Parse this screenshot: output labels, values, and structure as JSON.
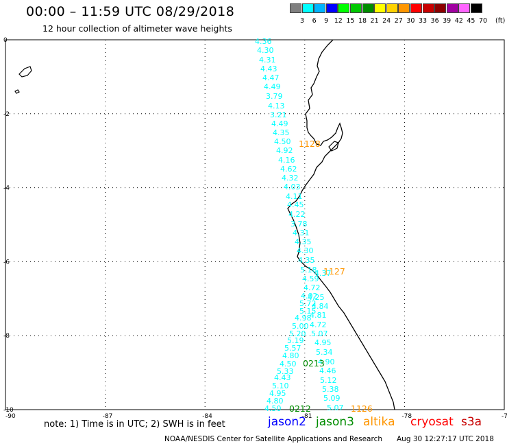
{
  "header": {
    "title": "00:00 – 11:59 UTC 08/29/2018",
    "subtitle": "12 hour collection of altimeter wave heights"
  },
  "legend": {
    "unit": "(ft)",
    "bins": [
      {
        "label": "3",
        "color": "#808080"
      },
      {
        "label": "6",
        "color": "#00ffff"
      },
      {
        "label": "9",
        "color": "#00b4ff"
      },
      {
        "label": "12",
        "color": "#0000ff"
      },
      {
        "label": "15",
        "color": "#00ff00"
      },
      {
        "label": "18",
        "color": "#00c800"
      },
      {
        "label": "21",
        "color": "#008c00"
      },
      {
        "label": "24",
        "color": "#ffff00"
      },
      {
        "label": "27",
        "color": "#ffd200"
      },
      {
        "label": "30",
        "color": "#ff9600"
      },
      {
        "label": "33",
        "color": "#ff0000"
      },
      {
        "label": "36",
        "color": "#c80000"
      },
      {
        "label": "39",
        "color": "#8c0000"
      },
      {
        "label": "42",
        "color": "#a000a0"
      },
      {
        "label": "45",
        "color": "#ff64ff"
      },
      {
        "label": "70",
        "color": "#000000"
      }
    ]
  },
  "map": {
    "lon_min": -90,
    "lon_max": -75,
    "lat_min": -10,
    "lat_max": 0,
    "lon_ticks": [
      "-90",
      "-87",
      "-84",
      "-81",
      "-78",
      "-75"
    ],
    "lat_ticks": [
      "0",
      "-2",
      "-4",
      "-6",
      "-8",
      "-10"
    ],
    "track1": {
      "color": "#00ffff",
      "values": [
        "4.36",
        "4.30",
        "4.31",
        "4.43",
        "4.47",
        "4.49",
        "3.79",
        "4.13",
        "3.21",
        "4.49",
        "4.35",
        "4.50",
        "4.92",
        "4.16",
        "4.62",
        "4.32",
        "4.03",
        "4.11",
        "4.45",
        "4.22",
        "3.78",
        "4.31",
        "4.35",
        "4.30",
        "4.35",
        "5.18",
        "4.37",
        "4.59",
        "4.72",
        "4.02",
        "4.25",
        "4.84",
        "5.72",
        "5.15",
        "4.81",
        "4.98",
        "4.72",
        "5.00",
        "5.20",
        "5.07",
        "5.19",
        "4.95",
        "5.57",
        "5.34",
        "4.80",
        "4.90",
        "4.50",
        "5.33",
        "4.46",
        "4.43",
        "5.12",
        "5.10",
        "5.38",
        "4.95",
        "5.09",
        "4.80",
        "5.07",
        "4.50"
      ]
    },
    "time_labels": [
      {
        "text": "1128",
        "color": "#ff9600"
      },
      {
        "text": "1127",
        "color": "#ff9600"
      },
      {
        "text": "0213",
        "color": "#008c00"
      },
      {
        "text": "0212",
        "color": "#008c00"
      },
      {
        "text": "1126",
        "color": "#ff9600"
      }
    ]
  },
  "footer": {
    "note": "note:  1) Time is in UTC;  2) SWH is in feet",
    "satellites": [
      {
        "name": "jason2",
        "color": "#0000ff"
      },
      {
        "name": "jason3",
        "color": "#008c00"
      },
      {
        "name": "altika",
        "color": "#ff9600"
      },
      {
        "name": "cryosat",
        "color": "#ff0000"
      },
      {
        "name": "s3a",
        "color": "#c80000"
      }
    ],
    "credit": "NOAA/NESDIS Center for Satellite Applications and Research",
    "timestamp": "Aug 30 12:27:17 UTC 2018"
  }
}
